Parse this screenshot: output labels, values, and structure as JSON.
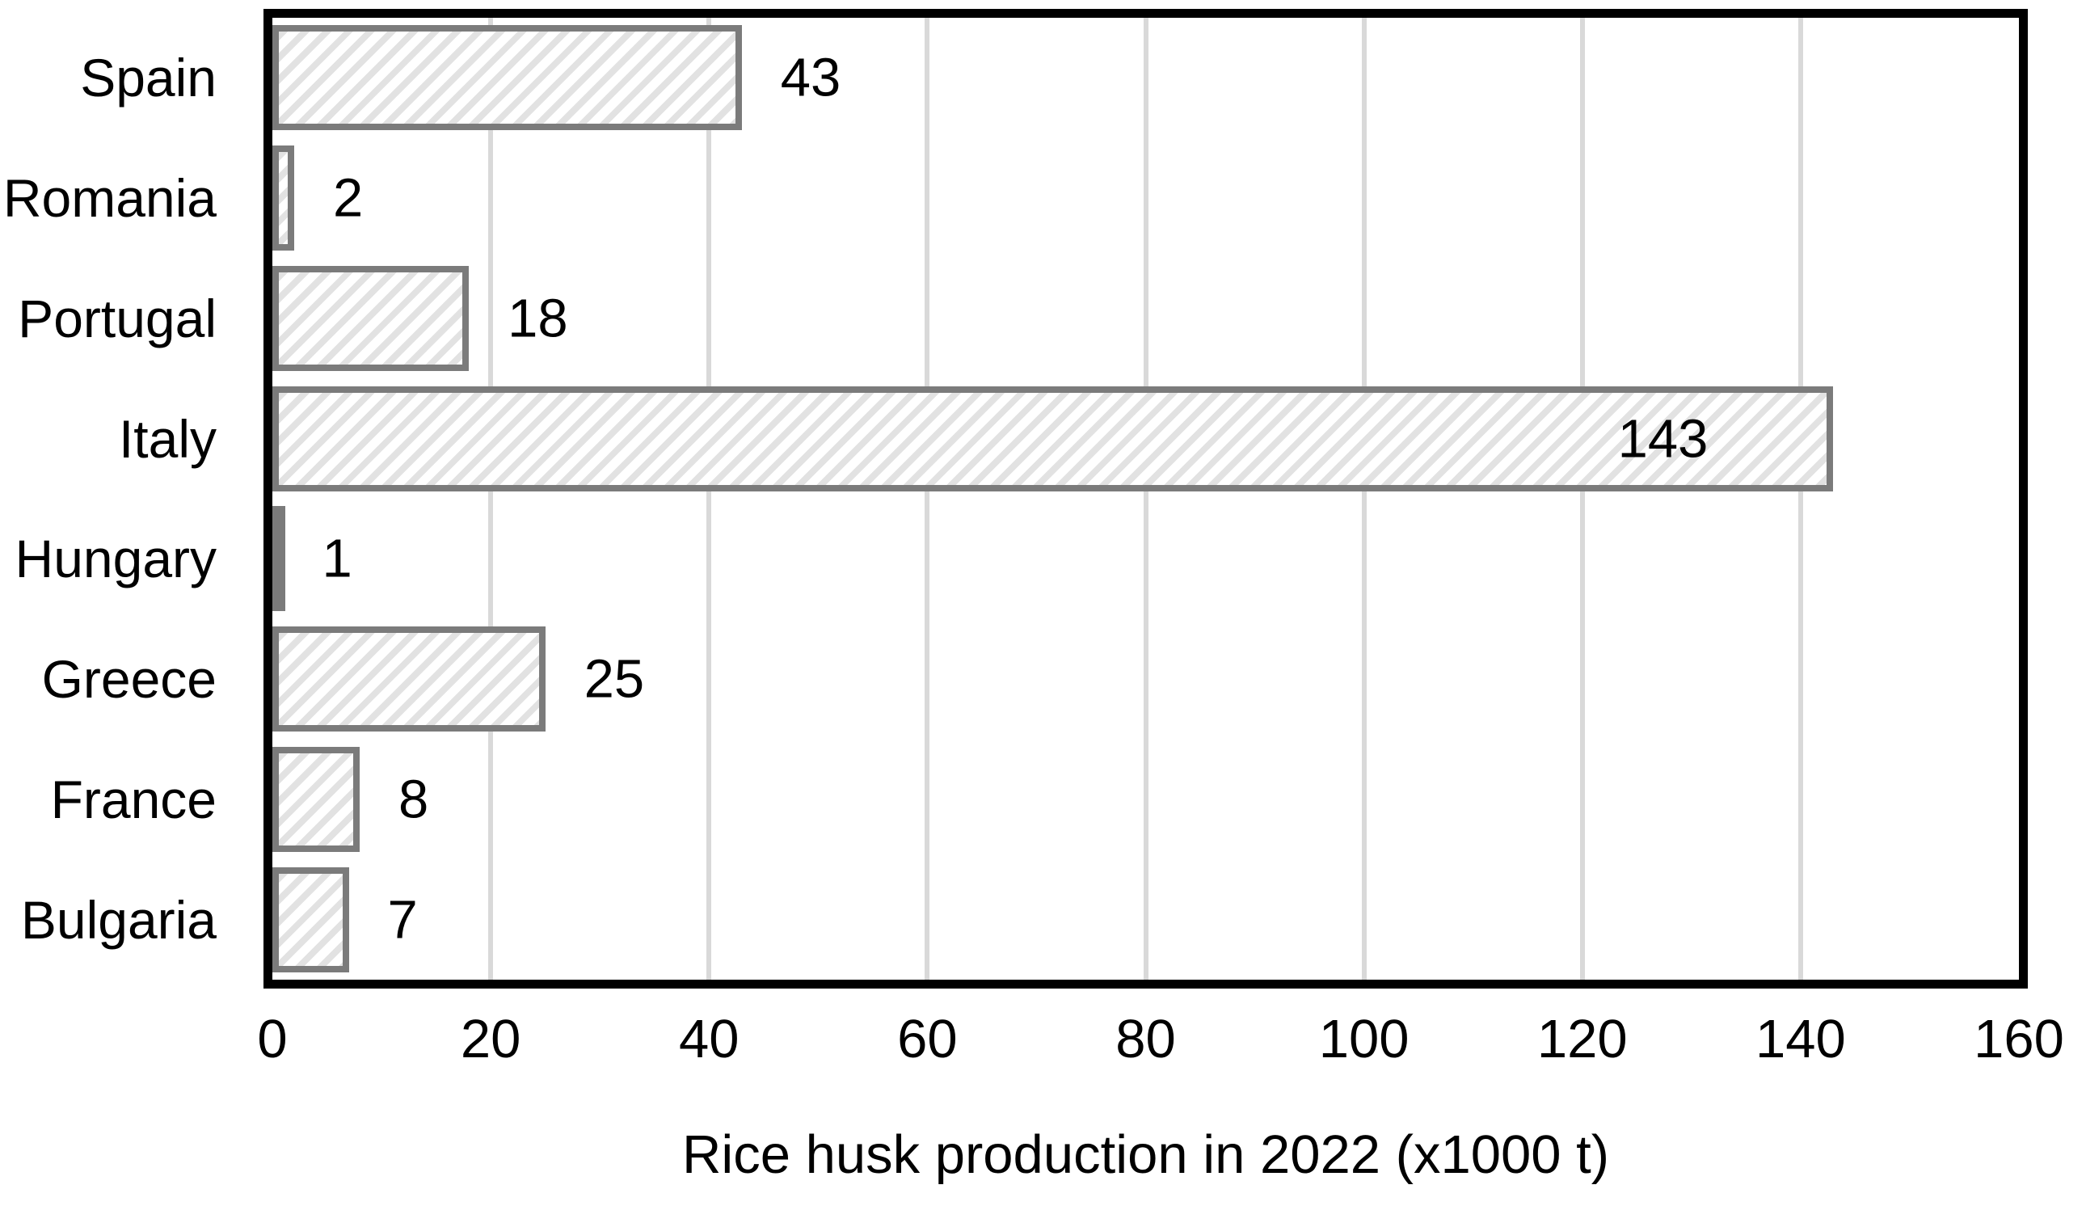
{
  "chart_data": {
    "type": "bar",
    "orientation": "horizontal",
    "title": "",
    "xlabel": "Rice husk production in 2022 (x1000 t)",
    "ylabel": "",
    "categories": [
      "Spain",
      "Romania",
      "Portugal",
      "Italy",
      "Hungary",
      "Greece",
      "France",
      "Bulgaria"
    ],
    "values": [
      43,
      2,
      18,
      143,
      1,
      25,
      8,
      7
    ],
    "xlim": [
      0,
      160
    ],
    "x_ticks": [
      0,
      20,
      40,
      60,
      80,
      100,
      120,
      140,
      160
    ],
    "grid": "vertical",
    "legend": "none",
    "value_labels": {
      "placement_default": "outside-end",
      "inside_end_categories": [
        "Italy"
      ]
    },
    "style": {
      "bar_fill": "#ffffff",
      "bar_hatch": "diagonal-forward",
      "bar_hatch_color": "#e2e2e2",
      "bar_border_color": "#7b7b7b",
      "plot_border_color": "#000000",
      "gridline_color": "#d9d9d9",
      "text_color": "#000000",
      "background": "#ffffff"
    }
  }
}
